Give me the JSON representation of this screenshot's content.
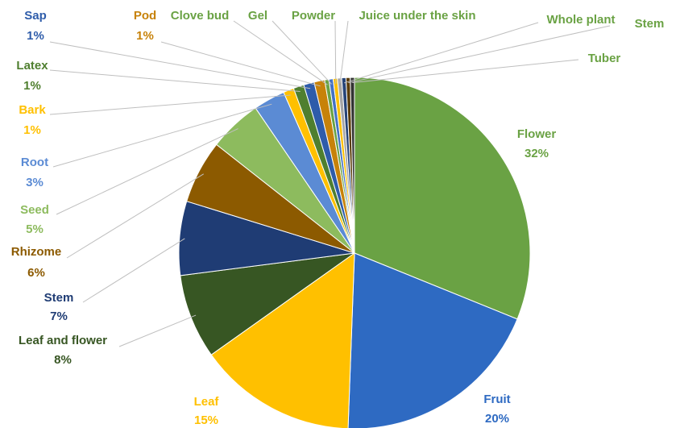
{
  "chart_data": {
    "type": "pie",
    "categories": [
      "Flower",
      "Fruit",
      "Leaf",
      "Leaf and flower",
      "Stem",
      "Rhizome",
      "Seed",
      "Root",
      "Bark",
      "Latex",
      "Sap",
      "Pod",
      "Clove bud",
      "Gel",
      "Powder",
      "Juice under the skin",
      "Whole plant",
      "Stem",
      "Tuber"
    ],
    "values": [
      32,
      20,
      15,
      8,
      7,
      6,
      5,
      3,
      1,
      1,
      1,
      1,
      0.4,
      0.4,
      0.4,
      0.4,
      0.4,
      0.4,
      0.4
    ],
    "value_labels": [
      "32%",
      "20%",
      "15%",
      "8%",
      "7%",
      "6%",
      "5%",
      "3%",
      "1%",
      "1%",
      "1%",
      "1%",
      null,
      null,
      null,
      null,
      null,
      null,
      null
    ],
    "colors": [
      "#6aa244",
      "#2e6ac2",
      "#ffc000",
      "#375623",
      "#1f3c74",
      "#8c5a00",
      "#8dbb5e",
      "#5b8bd4",
      "#ffc000",
      "#4f7f2f",
      "#2e5caa",
      "#c7820a",
      "#6aa244",
      "#4472c4",
      "#ffc000",
      "#a5a5a5",
      "#264478",
      "#5a3c0a",
      "#333333"
    ],
    "label_colors": [
      "#6aa244",
      "#2e6ac2",
      "#ffc000",
      "#375623",
      "#1f3c74",
      "#8c5a00",
      "#8dbb5e",
      "#5b8bd4",
      "#ffc000",
      "#4f7f2f",
      "#2e5caa",
      "#c7820a",
      "#6aa244",
      "#6aa244",
      "#6aa244",
      "#6aa244",
      "#6aa244",
      "#6aa244",
      "#6aa244"
    ]
  }
}
